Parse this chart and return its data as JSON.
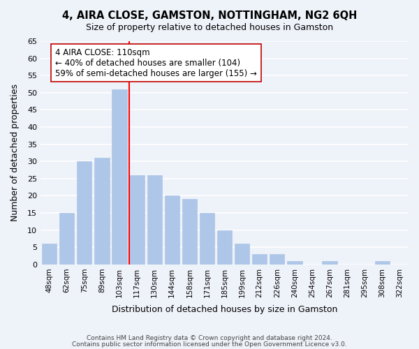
{
  "title": "4, AIRA CLOSE, GAMSTON, NOTTINGHAM, NG2 6QH",
  "subtitle": "Size of property relative to detached houses in Gamston",
  "xlabel": "Distribution of detached houses by size in Gamston",
  "ylabel": "Number of detached properties",
  "footnote1": "Contains HM Land Registry data © Crown copyright and database right 2024.",
  "footnote2": "Contains public sector information licensed under the Open Government Licence v3.0.",
  "bar_labels": [
    "48sqm",
    "62sqm",
    "75sqm",
    "89sqm",
    "103sqm",
    "117sqm",
    "130sqm",
    "144sqm",
    "158sqm",
    "171sqm",
    "185sqm",
    "199sqm",
    "212sqm",
    "226sqm",
    "240sqm",
    "254sqm",
    "267sqm",
    "281sqm",
    "295sqm",
    "308sqm",
    "322sqm"
  ],
  "bar_values": [
    6,
    15,
    30,
    31,
    51,
    26,
    26,
    20,
    19,
    15,
    10,
    6,
    3,
    3,
    1,
    0,
    1,
    0,
    0,
    1,
    0
  ],
  "bar_color": "#aec6e8",
  "bar_edge_color": "#aec6e8",
  "reference_line_color": "red",
  "reference_line_x": 4.575,
  "annotation_title": "4 AIRA CLOSE: 110sqm",
  "annotation_line1": "← 40% of detached houses are smaller (104)",
  "annotation_line2": "59% of semi-detached houses are larger (155) →",
  "annotation_box_color": "white",
  "annotation_box_edge_color": "#c00000",
  "ylim": [
    0,
    65
  ],
  "yticks": [
    0,
    5,
    10,
    15,
    20,
    25,
    30,
    35,
    40,
    45,
    50,
    55,
    60,
    65
  ],
  "background_color": "#eef2f9",
  "grid_color": "white"
}
